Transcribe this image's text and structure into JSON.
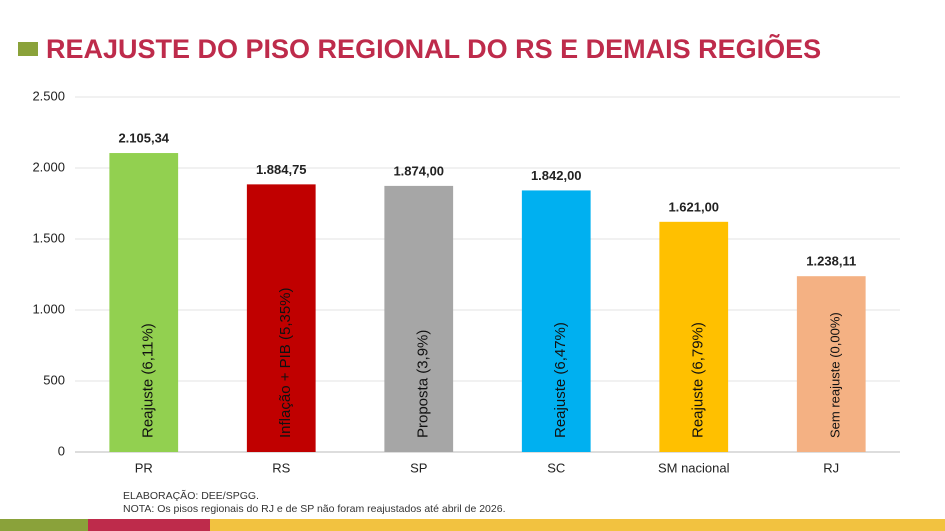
{
  "chart_data": {
    "type": "bar",
    "title": "REAJUSTE DO PISO REGIONAL DO RS E DEMAIS REGIÕES",
    "categories": [
      "PR",
      "RS",
      "SP",
      "SC",
      "SM nacional",
      "RJ"
    ],
    "values": [
      2105.34,
      1884.75,
      1874.0,
      1842.0,
      1621.0,
      1238.11
    ],
    "value_labels": [
      "2.105,34",
      "1.884,75",
      "1.874,00",
      "1.842,00",
      "1.621,00",
      "1.238,11"
    ],
    "colors": [
      "#92d050",
      "#c00000",
      "#a6a6a6",
      "#00b0f0",
      "#ffc000",
      "#f4b183"
    ],
    "bar_labels": [
      "Reajuste (6,11%)",
      "Inflação + PIB (5,35%)",
      "Proposta (3,9%)",
      "Reajuste (6,47%)",
      "Reajuste  (6,79%)",
      "Sem reajuste (0,00%)"
    ],
    "ylim": [
      0,
      2500
    ],
    "yticks": [
      0,
      {
        "value": 500,
        "label": "500"
      },
      {
        "value": 1000,
        "label": "1.000"
      },
      {
        "value": 1500,
        "label": "1.500"
      },
      {
        "value": 2000,
        "label": "2.000"
      },
      {
        "value": 2500,
        "label": "2.500"
      }
    ],
    "grid": true,
    "notes": [
      "ELABORAÇÃO: DEE/SPGG.",
      "NOTA: Os pisos regionais do RJ e de SP não foram reajustados até abril de 2026."
    ]
  }
}
